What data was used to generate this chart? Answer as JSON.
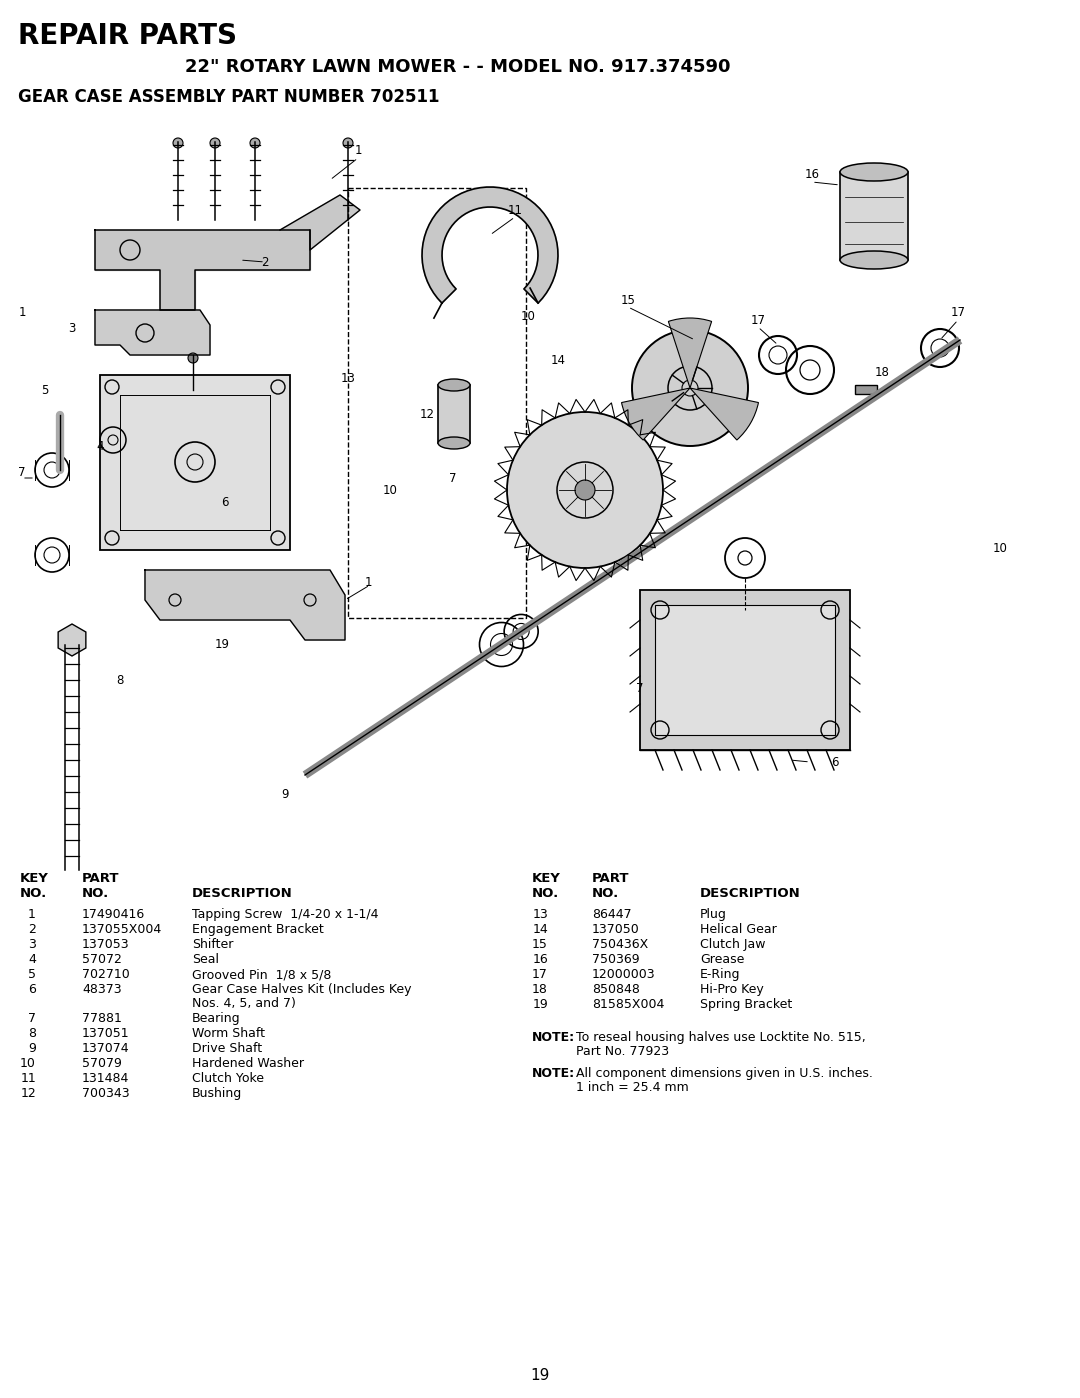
{
  "title1": "REPAIR PARTS",
  "title2": "22\" ROTARY LAWN MOWER - - MODEL NO. 917.374590",
  "title3": "GEAR CASE ASSEMBLY PART NUMBER 702511",
  "bg_color": "#ffffff",
  "left_rows": [
    [
      "1",
      "17490416",
      "Tapping Screw  1/4-20 x 1-1/4"
    ],
    [
      "2",
      "137055X004",
      "Engagement Bracket"
    ],
    [
      "3",
      "137053",
      "Shifter"
    ],
    [
      "4",
      "57072",
      "Seal"
    ],
    [
      "5",
      "702710",
      "Grooved Pin  1/8 x 5/8"
    ],
    [
      "6",
      "48373",
      "Gear Case Halves Kit (Includes Key\nNos. 4, 5, and 7)"
    ],
    [
      "7",
      "77881",
      "Bearing"
    ],
    [
      "8",
      "137051",
      "Worm Shaft"
    ],
    [
      "9",
      "137074",
      "Drive Shaft"
    ],
    [
      "10",
      "57079",
      "Hardened Washer"
    ],
    [
      "11",
      "131484",
      "Clutch Yoke"
    ],
    [
      "12",
      "700343",
      "Bushing"
    ]
  ],
  "right_rows": [
    [
      "13",
      "86447",
      "Plug"
    ],
    [
      "14",
      "137050",
      "Helical Gear"
    ],
    [
      "15",
      "750436X",
      "Clutch Jaw"
    ],
    [
      "16",
      "750369",
      "Grease"
    ],
    [
      "17",
      "12000003",
      "E-Ring"
    ],
    [
      "18",
      "850848",
      "Hi-Pro Key"
    ],
    [
      "19",
      "81585X004",
      "Spring Bracket"
    ]
  ],
  "note1_label": "NOTE:",
  "note1_line1": "To reseal housing halves use Locktite No. 515,",
  "note1_line2": "Part No. 77923",
  "note2_label": "NOTE:",
  "note2_line1": "All component dimensions given in U.S. inches.",
  "note2_line2": "1 inch = 25.4 mm",
  "page_number": "19"
}
